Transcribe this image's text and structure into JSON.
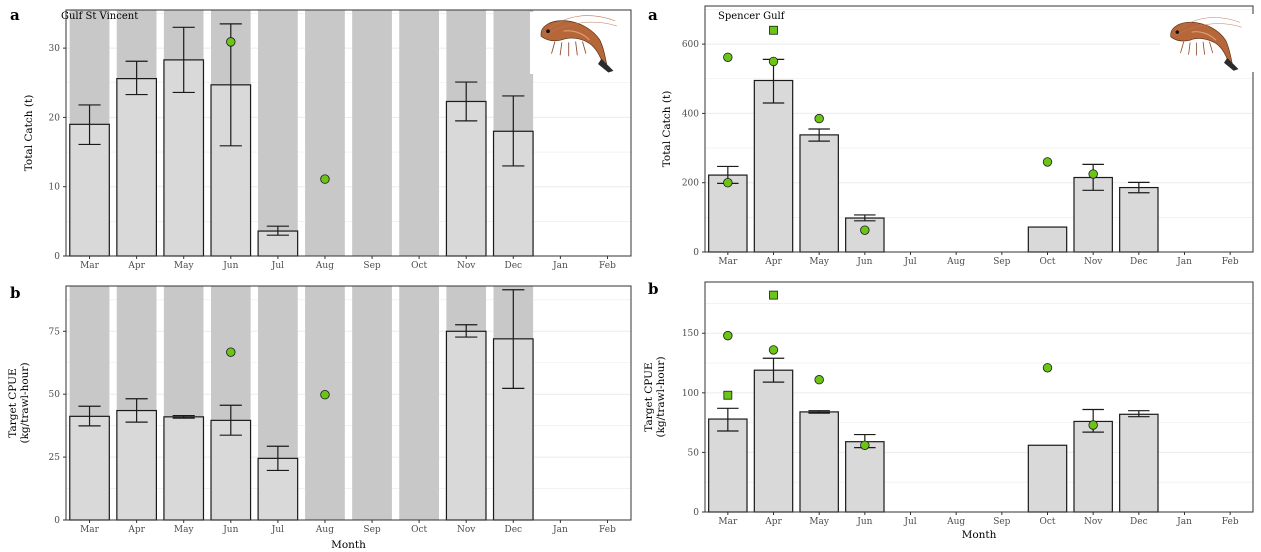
{
  "colors": {
    "bar_fill": "#d9d9d9",
    "bar_stroke": "#1a1a1a",
    "shade": "#c8c8c8",
    "grid": "#ebebeb",
    "marker": "#6cc417",
    "marker_stroke": "#1a1a1a",
    "panel_border": "#333333"
  },
  "icons": {
    "prawn": "prawn-icon"
  },
  "chart_data": [
    {
      "id": "gsv-catch",
      "type": "bar",
      "panel_letter": "a",
      "region_label": "Gulf St Vincent",
      "ylabel": "Total Catch (t)",
      "xlabel": "",
      "categories": [
        "Mar",
        "Apr",
        "May",
        "Jun",
        "Jul",
        "Aug",
        "Sep",
        "Oct",
        "Nov",
        "Dec",
        "Jan",
        "Feb"
      ],
      "ylim": [
        0,
        35.5
      ],
      "yticks": [
        0,
        10,
        20,
        30
      ],
      "shaded_months": [
        "Mar",
        "Apr",
        "May",
        "Jun",
        "Jul",
        "Aug",
        "Sep",
        "Oct",
        "Nov",
        "Dec"
      ],
      "values": [
        19.0,
        25.6,
        28.3,
        24.7,
        3.6,
        null,
        null,
        null,
        22.3,
        18.0,
        null,
        null
      ],
      "error_low": [
        16.1,
        23.3,
        23.6,
        15.9,
        3.0,
        null,
        null,
        null,
        19.5,
        13.0,
        null,
        null
      ],
      "error_high": [
        21.8,
        28.1,
        33.0,
        33.5,
        4.3,
        null,
        null,
        null,
        25.1,
        23.1,
        null,
        null
      ],
      "points": [
        {
          "x": "Jun",
          "y": 30.9,
          "shape": "circle"
        },
        {
          "x": "Aug",
          "y": 11.1,
          "shape": "circle"
        }
      ],
      "grid": true,
      "show_icon": true
    },
    {
      "id": "gsv-cpue",
      "type": "bar",
      "panel_letter": "b",
      "region_label": "",
      "ylabel": "Target CPUE\n(kg/trawl-hour)",
      "xlabel": "Month",
      "categories": [
        "Mar",
        "Apr",
        "May",
        "Jun",
        "Jul",
        "Aug",
        "Sep",
        "Oct",
        "Nov",
        "Dec",
        "Jan",
        "Feb"
      ],
      "ylim": [
        0,
        93
      ],
      "yticks": [
        0,
        25,
        50,
        75
      ],
      "shaded_months": [
        "Mar",
        "Apr",
        "May",
        "Jun",
        "Jul",
        "Aug",
        "Sep",
        "Oct",
        "Nov",
        "Dec"
      ],
      "values": [
        41.2,
        43.5,
        41.0,
        39.6,
        24.5,
        null,
        null,
        null,
        75.0,
        72.0,
        null,
        null
      ],
      "error_low": [
        37.4,
        38.9,
        40.5,
        33.7,
        19.7,
        null,
        null,
        null,
        72.7,
        52.3,
        null,
        null
      ],
      "error_high": [
        45.2,
        48.2,
        41.5,
        45.6,
        29.3,
        null,
        null,
        null,
        77.6,
        91.5,
        null,
        null
      ],
      "points": [
        {
          "x": "Jun",
          "y": 66.7,
          "shape": "circle"
        },
        {
          "x": "Aug",
          "y": 49.8,
          "shape": "circle"
        }
      ],
      "grid": true,
      "show_icon": false
    },
    {
      "id": "sg-catch",
      "type": "bar",
      "panel_letter": "a",
      "region_label": "Spencer Gulf",
      "ylabel": "Total Catch (t)",
      "xlabel": "",
      "categories": [
        "Mar",
        "Apr",
        "May",
        "Jun",
        "Jul",
        "Aug",
        "Sep",
        "Oct",
        "Nov",
        "Dec",
        "Jan",
        "Feb"
      ],
      "ylim": [
        0,
        710
      ],
      "yticks": [
        0,
        200,
        400,
        600
      ],
      "shaded_months": [],
      "values": [
        222,
        495,
        338,
        98,
        null,
        null,
        null,
        72,
        215,
        186,
        null,
        null
      ],
      "error_low": [
        198,
        430,
        320,
        90,
        null,
        null,
        null,
        null,
        178,
        171,
        null,
        null
      ],
      "error_high": [
        247,
        556,
        355,
        107,
        null,
        null,
        null,
        null,
        253,
        201,
        null,
        null
      ],
      "points": [
        {
          "x": "Mar",
          "y": 562,
          "shape": "circle"
        },
        {
          "x": "Mar",
          "y": 200,
          "shape": "circle"
        },
        {
          "x": "Apr",
          "y": 640,
          "shape": "square"
        },
        {
          "x": "Apr",
          "y": 550,
          "shape": "circle"
        },
        {
          "x": "May",
          "y": 385,
          "shape": "circle"
        },
        {
          "x": "Jun",
          "y": 63,
          "shape": "circle"
        },
        {
          "x": "Oct",
          "y": 260,
          "shape": "circle"
        },
        {
          "x": "Nov",
          "y": 225,
          "shape": "circle"
        }
      ],
      "grid": true,
      "show_icon": true
    },
    {
      "id": "sg-cpue",
      "type": "bar",
      "panel_letter": "b",
      "region_label": "",
      "ylabel": "Target CPUE\n(kg/trawl-hour)",
      "xlabel": "Month",
      "categories": [
        "Mar",
        "Apr",
        "May",
        "Jun",
        "Jul",
        "Aug",
        "Sep",
        "Oct",
        "Nov",
        "Dec",
        "Jan",
        "Feb"
      ],
      "ylim": [
        0,
        193
      ],
      "yticks": [
        0,
        50,
        100,
        150
      ],
      "shaded_months": [],
      "values": [
        78,
        119,
        84,
        59,
        null,
        null,
        null,
        56,
        76,
        82,
        null,
        null
      ],
      "error_low": [
        68,
        109,
        83,
        54,
        null,
        null,
        null,
        null,
        67,
        80,
        null,
        null
      ],
      "error_high": [
        87,
        129,
        85,
        65,
        null,
        null,
        null,
        null,
        86,
        85,
        null,
        null
      ],
      "points": [
        {
          "x": "Mar",
          "y": 148,
          "shape": "circle"
        },
        {
          "x": "Mar",
          "y": 98,
          "shape": "square"
        },
        {
          "x": "Apr",
          "y": 182,
          "shape": "square"
        },
        {
          "x": "Apr",
          "y": 136,
          "shape": "circle"
        },
        {
          "x": "May",
          "y": 111,
          "shape": "circle"
        },
        {
          "x": "Jun",
          "y": 56,
          "shape": "circle"
        },
        {
          "x": "Oct",
          "y": 121,
          "shape": "circle"
        },
        {
          "x": "Nov",
          "y": 73,
          "shape": "circle"
        }
      ],
      "grid": true,
      "show_icon": false
    }
  ]
}
